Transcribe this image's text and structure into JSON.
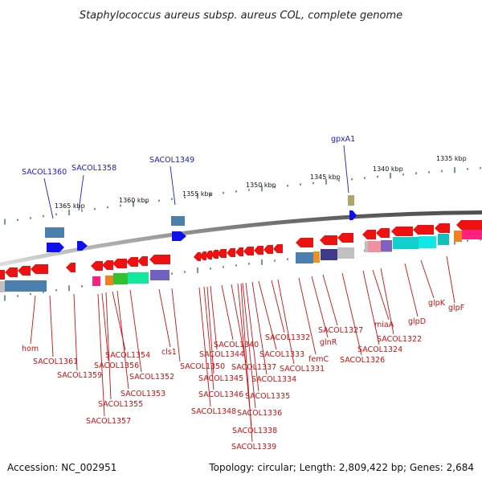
{
  "title": "Staphylococcus aureus subsp. aureus COL, complete genome",
  "footer": {
    "accession": "Accession: NC_002951",
    "summary": "Topology: circular; Length: 2,809,422 bp; Genes: 2,684"
  },
  "colors": {
    "backbone_dark": "#6e6e6e",
    "backbone_light": "#dcdcdc",
    "tick": "#2e7d32",
    "forward": "#1010ee",
    "reverse": "#ee1111",
    "forward_label": "#1a1ad0",
    "reverse_label": "#cc1111"
  },
  "scale_labels": [
    {
      "text": "1365 kbp"
    },
    {
      "text": "1360 kbp"
    },
    {
      "text": "1355 kbp"
    },
    {
      "text": "1350 kbp"
    },
    {
      "text": "1345 kbp"
    },
    {
      "text": "1340 kbp"
    },
    {
      "text": "1335 kbp"
    }
  ],
  "forward_labels": [
    {
      "text": "SACOL1360"
    },
    {
      "text": "SACOL1358"
    },
    {
      "text": "SACOL1349"
    },
    {
      "text": "gpxA1"
    }
  ],
  "reverse_labels": [
    {
      "text": "hom"
    },
    {
      "text": "SACOL1361"
    },
    {
      "text": "SACOL1359"
    },
    {
      "text": "SACOL1357"
    },
    {
      "text": "SACOL1356"
    },
    {
      "text": "SACOL1355"
    },
    {
      "text": "SACOL1354"
    },
    {
      "text": "SACOL1353"
    },
    {
      "text": "SACOL1352"
    },
    {
      "text": "cls1"
    },
    {
      "text": "SACOL1350"
    },
    {
      "text": "SACOL1348"
    },
    {
      "text": "SACOL1346"
    },
    {
      "text": "SACOL1345"
    },
    {
      "text": "SACOL1344"
    },
    {
      "text": "SACOL1340"
    },
    {
      "text": "SACOL1337"
    },
    {
      "text": "SACOL1338"
    },
    {
      "text": "SACOL1339"
    },
    {
      "text": "SACOL1336"
    },
    {
      "text": "SACOL1335"
    },
    {
      "text": "SACOL1334"
    },
    {
      "text": "SACOL1333"
    },
    {
      "text": "SACOL1332"
    },
    {
      "text": "SACOL1331"
    },
    {
      "text": "femC"
    },
    {
      "text": "glnR"
    },
    {
      "text": "SACOL1327"
    },
    {
      "text": "SACOL1326"
    },
    {
      "text": "SACOL1324"
    },
    {
      "text": "miaA"
    },
    {
      "text": "SACOL1322"
    },
    {
      "text": "glpD"
    },
    {
      "text": "glpK"
    },
    {
      "text": "glpF"
    }
  ]
}
